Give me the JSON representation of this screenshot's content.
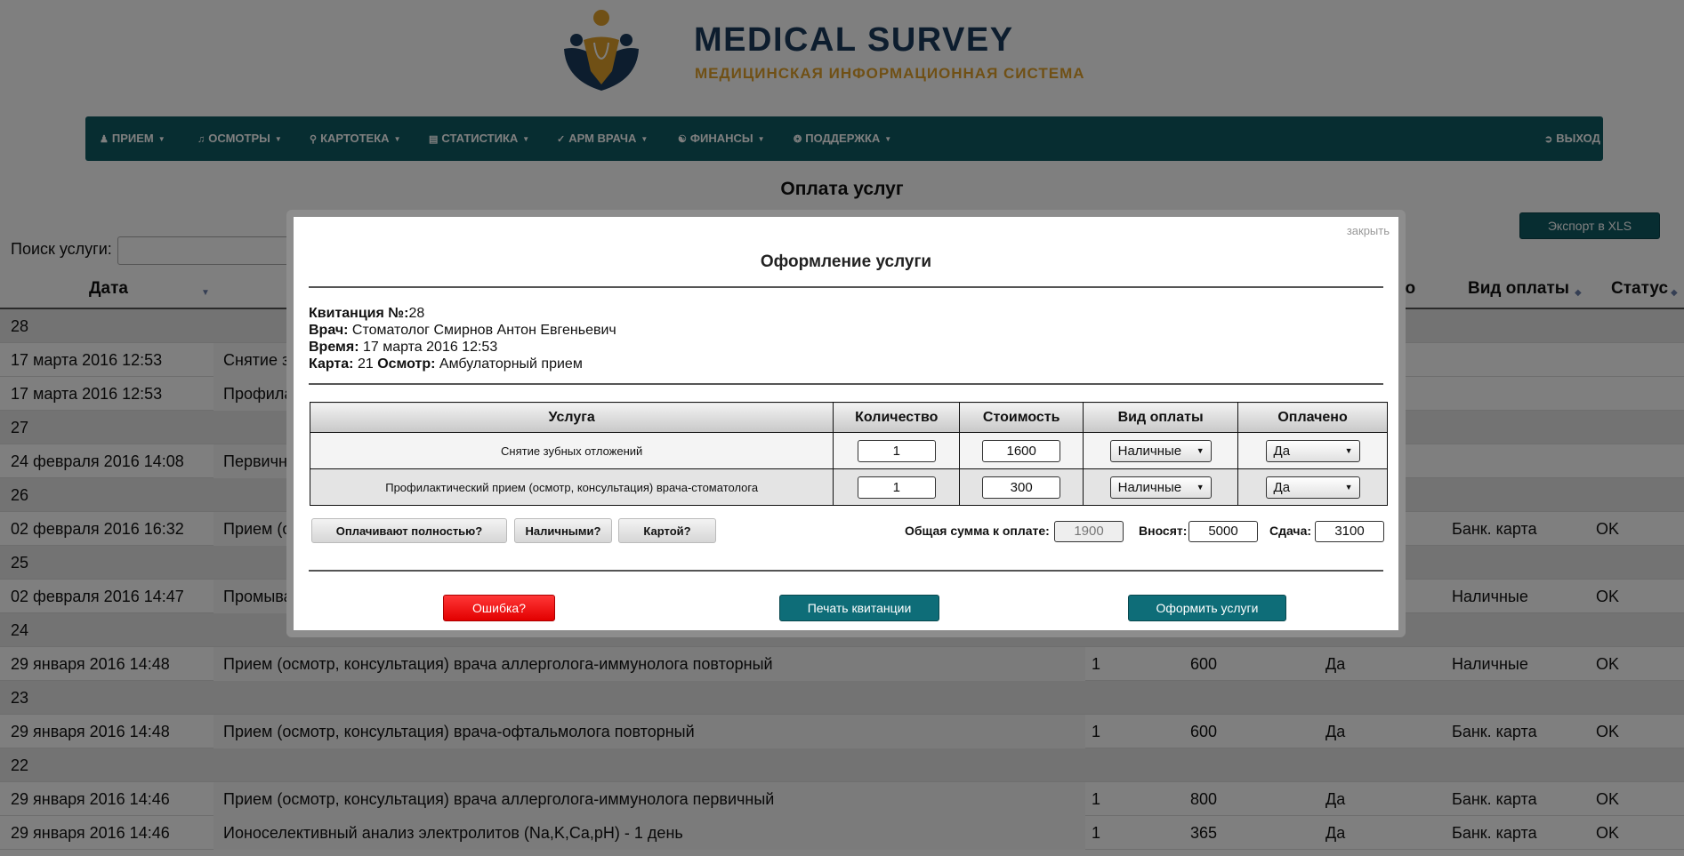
{
  "brand": {
    "title": "MEDICAL SURVEY",
    "subtitle": "МЕДИЦИНСКАЯ ИНФОРМАЦИОННАЯ СИСТЕМА",
    "colors": {
      "title": "#1b3a5c",
      "subtitle": "#e0a12a"
    }
  },
  "nav": {
    "items": [
      {
        "label": "ПРИЕМ",
        "icon": "user-icon"
      },
      {
        "label": "ОСМОТРЫ",
        "icon": "stethoscope-icon"
      },
      {
        "label": "КАРТОТЕКА",
        "icon": "search-icon"
      },
      {
        "label": "СТАТИСТИКА",
        "icon": "bar-chart-icon"
      },
      {
        "label": "АРМ ВРАЧА",
        "icon": "check-icon"
      },
      {
        "label": "ФИНАНСЫ",
        "icon": "coin-icon"
      },
      {
        "label": "ПОДДЕРЖКА",
        "icon": "lifebuoy-icon"
      }
    ],
    "logout": {
      "label": "ВЫХОД",
      "icon": "logout-icon"
    },
    "color": "#0e5a63"
  },
  "page": {
    "title": "Оплата услуг",
    "export_label": "Экспорт в XLS",
    "search_label": "Поиск услуги:"
  },
  "table": {
    "headers": {
      "date": "Дата",
      "paid_partial": "но",
      "payment_type": "Вид оплаты",
      "status": "Статус"
    },
    "rows": [
      {
        "type": "group",
        "date": "28"
      },
      {
        "type": "item",
        "date": "17 марта 2016 12:53",
        "service": "Снятие зу"
      },
      {
        "type": "item",
        "date": "17 марта 2016 12:53",
        "service": "Профила"
      },
      {
        "type": "group",
        "date": "27"
      },
      {
        "type": "item",
        "date": "24 февраля 2016 14:08",
        "service": "Первичны"
      },
      {
        "type": "group",
        "date": "26"
      },
      {
        "type": "item",
        "date": "02 февраля 2016 16:32",
        "service": "Прием (ос",
        "paytype": "Банк. карта",
        "status": "OK"
      },
      {
        "type": "group",
        "date": "25"
      },
      {
        "type": "item",
        "date": "02 февраля 2016 14:47",
        "service": "Промыва",
        "paytype": "Наличные",
        "status": "OK"
      },
      {
        "type": "group",
        "date": "24"
      },
      {
        "type": "item",
        "date": "29 января 2016 14:48",
        "service": "Прием (осмотр, консультация) врача аллерголога-иммунолога повторный",
        "qty": "1",
        "cost": "600",
        "paid": "Да",
        "paytype": "Наличные",
        "status": "OK"
      },
      {
        "type": "group",
        "date": "23"
      },
      {
        "type": "item",
        "date": "29 января 2016 14:48",
        "service": "Прием (осмотр, консультация) врача-офтальмолога повторный",
        "qty": "1",
        "cost": "600",
        "paid": "Да",
        "paytype": "Банк. карта",
        "status": "OK"
      },
      {
        "type": "group",
        "date": "22"
      },
      {
        "type": "item",
        "date": "29 января 2016 14:46",
        "service": "Прием (осмотр, консультация) врача аллерголога-иммунолога первичный",
        "qty": "1",
        "cost": "800",
        "paid": "Да",
        "paytype": "Банк. карта",
        "status": "OK"
      },
      {
        "type": "item",
        "date": "29 января 2016 14:46",
        "service": "Ионоселективный анализ электролитов (Na,K,Ca,pH) - 1 день",
        "qty": "1",
        "cost": "365",
        "paid": "Да",
        "paytype": "Банк. карта",
        "status": "OK"
      }
    ]
  },
  "modal": {
    "close_label": "закрыть",
    "title": "Оформление услуги",
    "info": {
      "receipt_label": "Квитанция №:",
      "receipt_value": "28",
      "doctor_label": "Врач:",
      "doctor_value": "Стоматолог Смирнов Антон Евгеньевич",
      "time_label": "Время:",
      "time_value": "17 марта 2016 12:53",
      "card_label": "Карта:",
      "card_value": "21",
      "exam_label": "Осмотр:",
      "exam_value": "Амбулаторный прием"
    },
    "table": {
      "headers": [
        "Услуга",
        "Количество",
        "Стоимость",
        "Вид оплаты",
        "Оплачено"
      ],
      "rows": [
        {
          "service": "Снятие зубных отложений",
          "qty": "1",
          "cost": "1600",
          "paytype": "Наличные",
          "paid": "Да"
        },
        {
          "service": "Профилактический прием (осмотр, консультация) врача-стоматолога",
          "qty": "1",
          "cost": "300",
          "paytype": "Наличные",
          "paid": "Да"
        }
      ]
    },
    "quick_buttons": {
      "full": "Оплачивают полностью?",
      "cash": "Наличными?",
      "card": "Картой?"
    },
    "totals": {
      "total_label": "Общая сумма к оплате:",
      "total_value": "1900",
      "paid_label": "Вносят:",
      "paid_value": "5000",
      "change_label": "Сдача:",
      "change_value": "3100"
    },
    "actions": {
      "error": "Ошибка?",
      "print": "Печать квитанции",
      "submit": "Оформить услуги"
    }
  }
}
